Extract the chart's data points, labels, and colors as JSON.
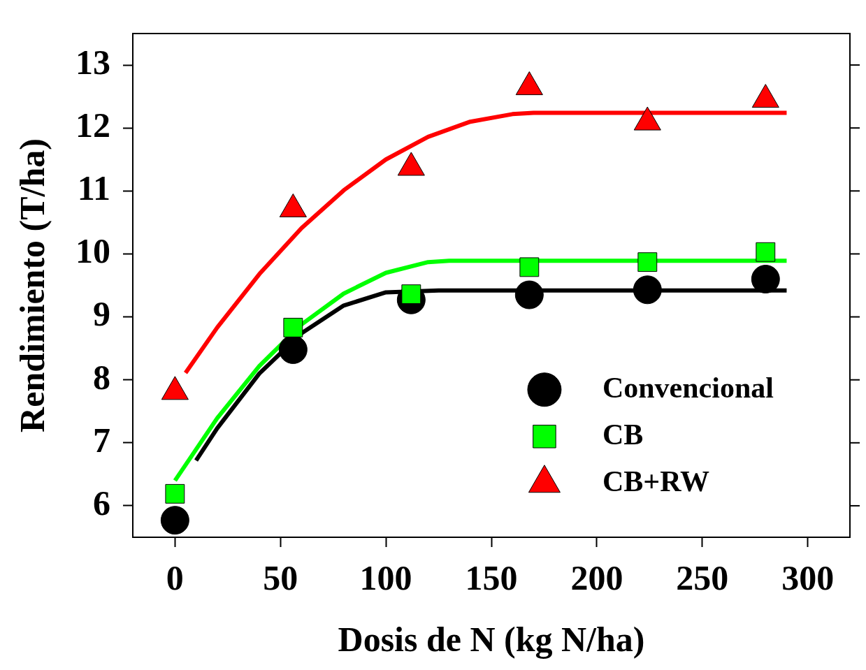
{
  "chart_data": {
    "type": "scatter",
    "xlabel": "Dosis de N (kg N/ha)",
    "ylabel": "Rendimiento (T/ha)",
    "xlim": [
      -20,
      320
    ],
    "xticks": [
      0,
      50,
      100,
      150,
      200,
      250,
      300
    ],
    "ylim": [
      5.5,
      13.5
    ],
    "yticks": [
      6,
      7,
      8,
      9,
      10,
      11,
      12,
      13
    ],
    "grid": false,
    "legend": "right",
    "series": [
      {
        "type": "line",
        "marker": "none",
        "color": "#000000",
        "x": [
          10,
          20,
          40,
          60,
          80,
          100,
          125,
          290
        ],
        "values": [
          6.72,
          7.23,
          8.1,
          8.74,
          9.18,
          9.39,
          9.42,
          9.42
        ]
      },
      {
        "type": "line",
        "marker": "none",
        "color": "#00ff00",
        "x": [
          0,
          20,
          40,
          60,
          80,
          100,
          120,
          130,
          290
        ],
        "values": [
          6.4,
          7.39,
          8.22,
          8.88,
          9.37,
          9.7,
          9.87,
          9.89,
          9.89
        ]
      },
      {
        "type": "line",
        "marker": "none",
        "color": "#ff0000",
        "x": [
          5,
          20,
          40,
          60,
          80,
          100,
          120,
          140,
          160,
          170,
          290
        ],
        "values": [
          8.11,
          8.83,
          9.68,
          10.41,
          11.01,
          11.5,
          11.86,
          12.1,
          12.22,
          12.24,
          12.24
        ]
      },
      {
        "name": "Convencional",
        "marker": "circle",
        "color": "#000000",
        "x": [
          0,
          56,
          112,
          168,
          224,
          280
        ],
        "values": [
          5.77,
          8.48,
          9.27,
          9.35,
          9.43,
          9.6
        ]
      },
      {
        "name": "CB",
        "marker": "square",
        "color": "#00ff00",
        "x": [
          0,
          56,
          112,
          168,
          224,
          280
        ],
        "values": [
          6.19,
          8.83,
          9.36,
          9.79,
          9.87,
          10.03
        ]
      },
      {
        "name": "CB+RW",
        "marker": "triangle",
        "color": "#ff0000",
        "x": [
          0,
          56,
          112,
          168,
          224,
          280
        ],
        "values": [
          7.81,
          10.71,
          11.37,
          12.65,
          12.09,
          12.45
        ]
      }
    ]
  }
}
